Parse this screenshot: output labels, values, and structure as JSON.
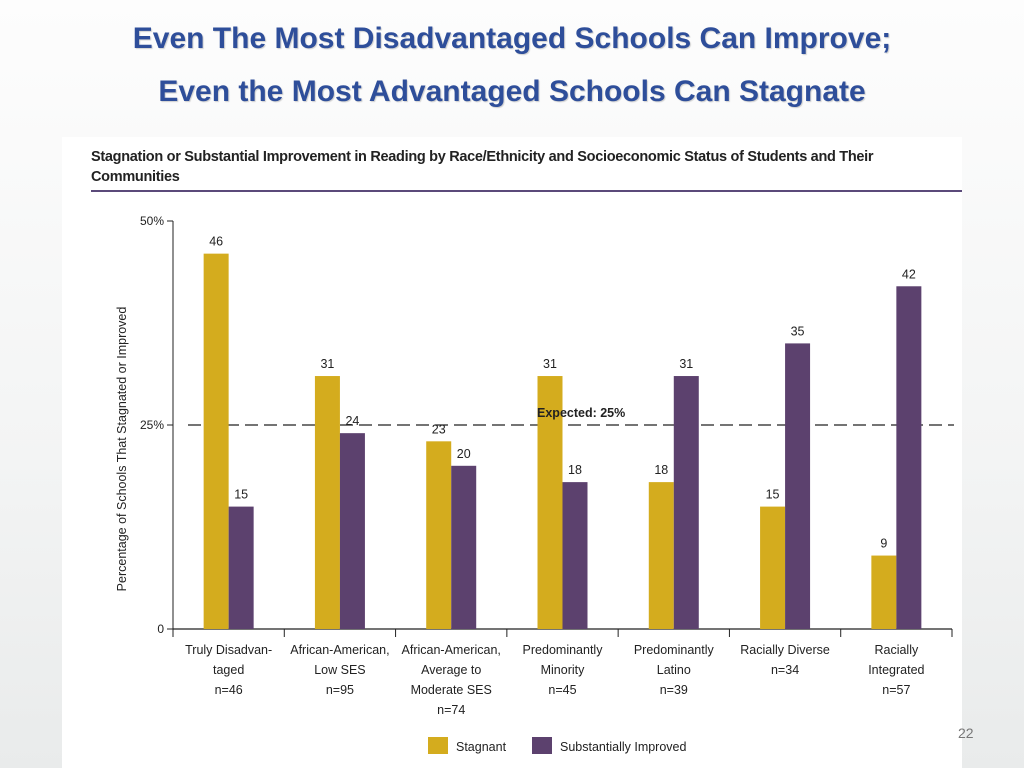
{
  "slide": {
    "title_line1": "Even The Most Disadvantaged Schools Can Improve;",
    "title_line2": "Even the Most Advantaged Schools Can Stagnate",
    "page_number": "22"
  },
  "colors": {
    "title": "#2e4e9a",
    "stagnant": "#d4ac1e",
    "improved": "#5c416e",
    "rule": "#5b4a7a"
  },
  "chart_data": {
    "type": "bar",
    "title": "Stagnation or Substantial Improvement in Reading by Race/Ethnicity and Socioeconomic Status of Students and Their Communities",
    "ylabel": "Percentage of Schools That Stagnated or Improved",
    "ylim": [
      0,
      50
    ],
    "yticks": [
      {
        "value": 0,
        "label": "0"
      },
      {
        "value": 25,
        "label": "25%"
      },
      {
        "value": 50,
        "label": "50%"
      }
    ],
    "categories": [
      [
        "Truly Disadvan-",
        "taged",
        "n=46"
      ],
      [
        "African-American,",
        "Low SES",
        "n=95"
      ],
      [
        "African-American,",
        "Average to",
        "Moderate SES",
        "n=74"
      ],
      [
        "Predominantly",
        "Minority",
        "n=45"
      ],
      [
        "Predominantly",
        "Latino",
        "n=39"
      ],
      [
        "Racially Diverse",
        "n=34"
      ],
      [
        "Racially",
        "Integrated",
        "n=57"
      ]
    ],
    "series": [
      {
        "name": "Stagnant",
        "values": [
          46,
          31,
          23,
          31,
          18,
          15,
          9
        ]
      },
      {
        "name": "Substantially Improved",
        "values": [
          15,
          24,
          20,
          18,
          31,
          35,
          42
        ]
      }
    ],
    "reference_line": {
      "value": 25,
      "label": "Expected: 25%"
    },
    "legend_position": "bottom"
  }
}
